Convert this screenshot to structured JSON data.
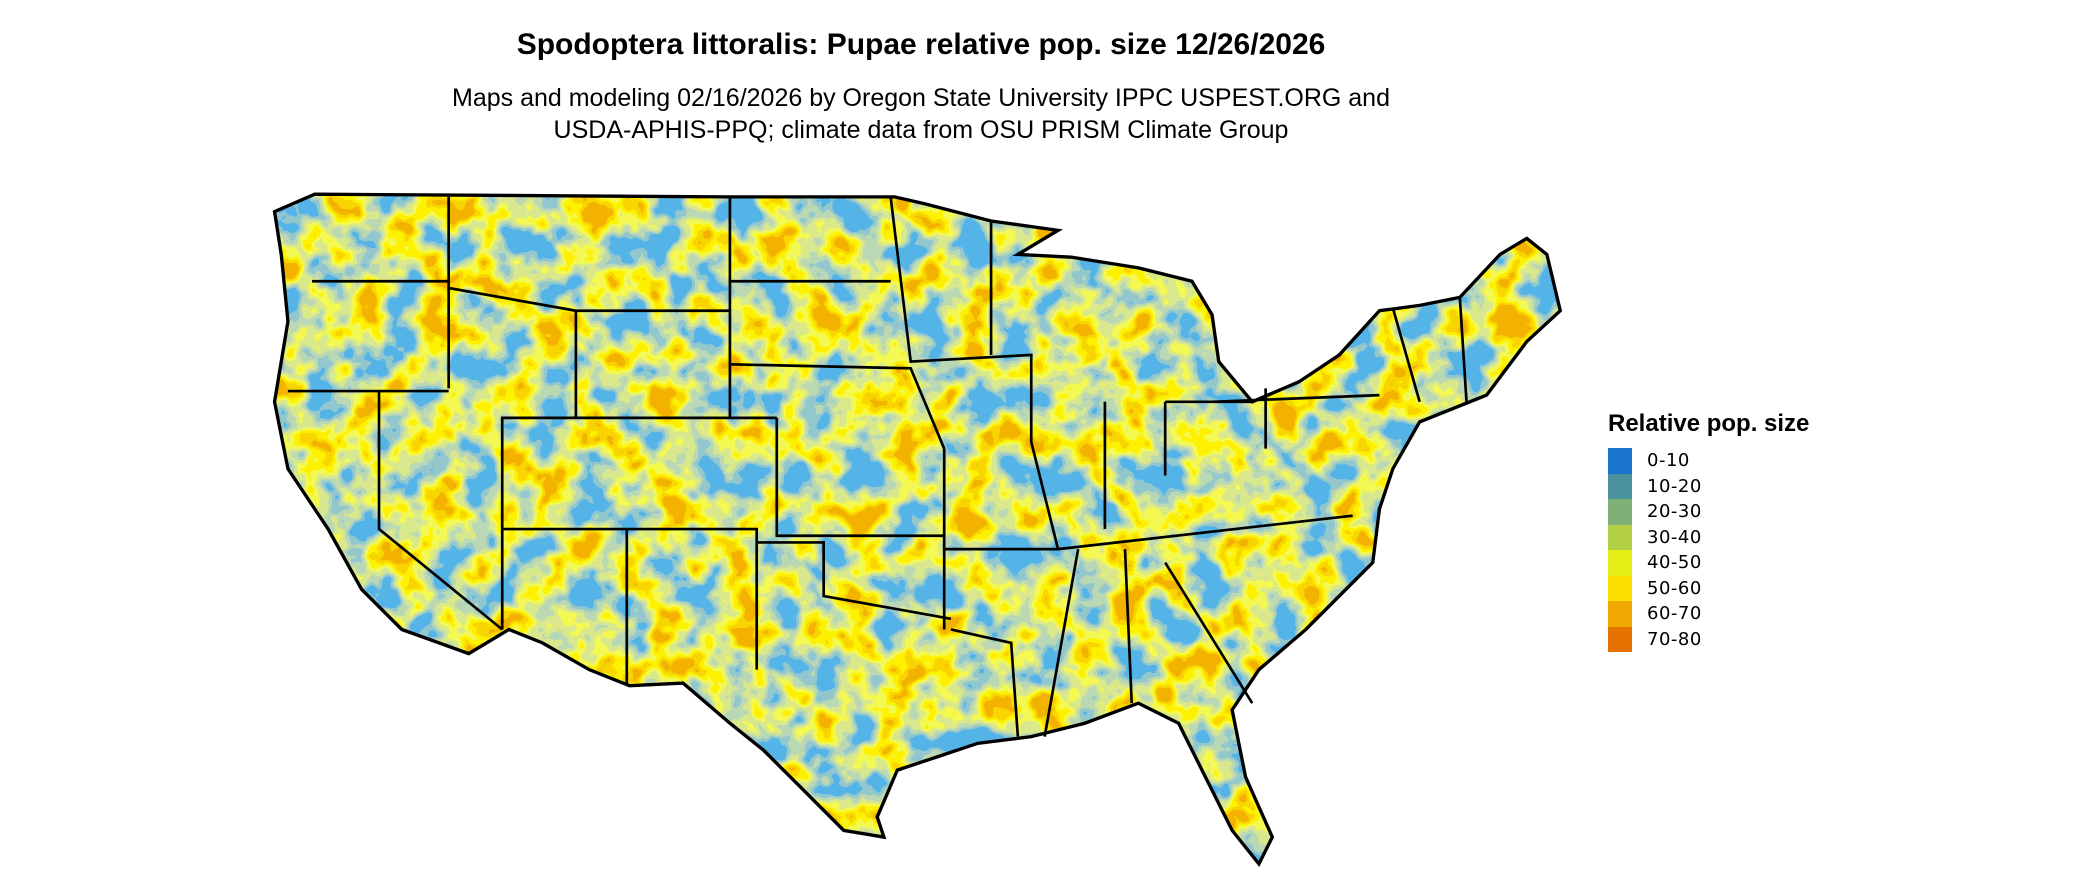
{
  "title": "Spodoptera littoralis: Pupae relative pop. size 12/26/2026",
  "subtitle_lines": [
    "Maps and modeling 02/16/2026 by Oregon State University IPPC USPEST.ORG and",
    "USDA-APHIS-PPQ; climate data from OSU PRISM Climate Group"
  ],
  "legend": {
    "title": "Relative pop. size",
    "placement": "right",
    "items": [
      {
        "label": "0-10",
        "color": "#1874CD"
      },
      {
        "label": "10-20",
        "color": "#4A919E"
      },
      {
        "label": "20-30",
        "color": "#7FB076"
      },
      {
        "label": "30-40",
        "color": "#B3CF45"
      },
      {
        "label": "40-50",
        "color": "#E5EF16"
      },
      {
        "label": "50-60",
        "color": "#FCE000"
      },
      {
        "label": "60-70",
        "color": "#F0A800"
      },
      {
        "label": "70-80",
        "color": "#E67300"
      }
    ]
  },
  "map": {
    "region": "Contiguous United States",
    "borders": "state boundaries in black"
  }
}
